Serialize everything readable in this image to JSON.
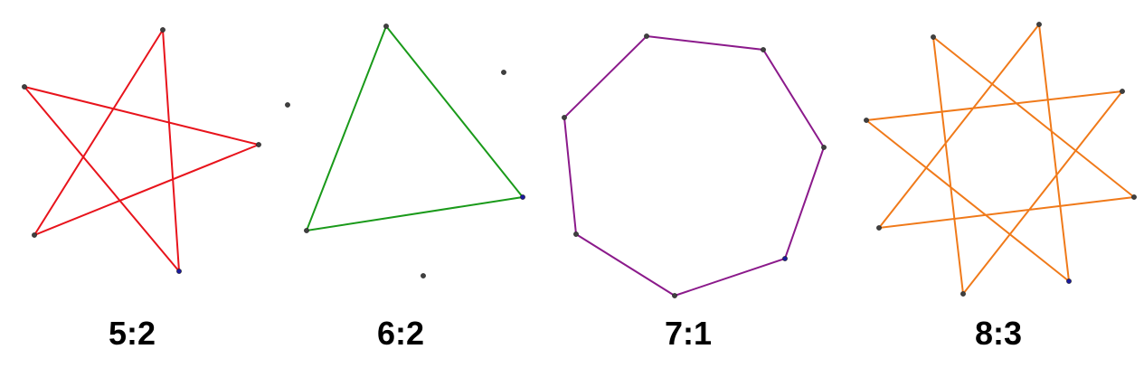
{
  "figures": [
    {
      "label": "5:2",
      "points": 5,
      "step": 2,
      "color": "#e8141c",
      "vertex_color": "#404040",
      "highlight_vertex_color": "#1a1a9e"
    },
    {
      "label": "6:2",
      "points": 6,
      "step": 2,
      "color": "#1a9a1a",
      "vertex_color": "#404040",
      "highlight_vertex_color": "#1a1a9e"
    },
    {
      "label": "7:1",
      "points": 7,
      "step": 1,
      "color": "#8b1a8b",
      "vertex_color": "#404040",
      "highlight_vertex_color": "#1a1a9e"
    },
    {
      "label": "8:3",
      "points": 8,
      "step": 3,
      "color": "#f07a1a",
      "vertex_color": "#404040",
      "highlight_vertex_color": "#1a1a9e"
    }
  ]
}
